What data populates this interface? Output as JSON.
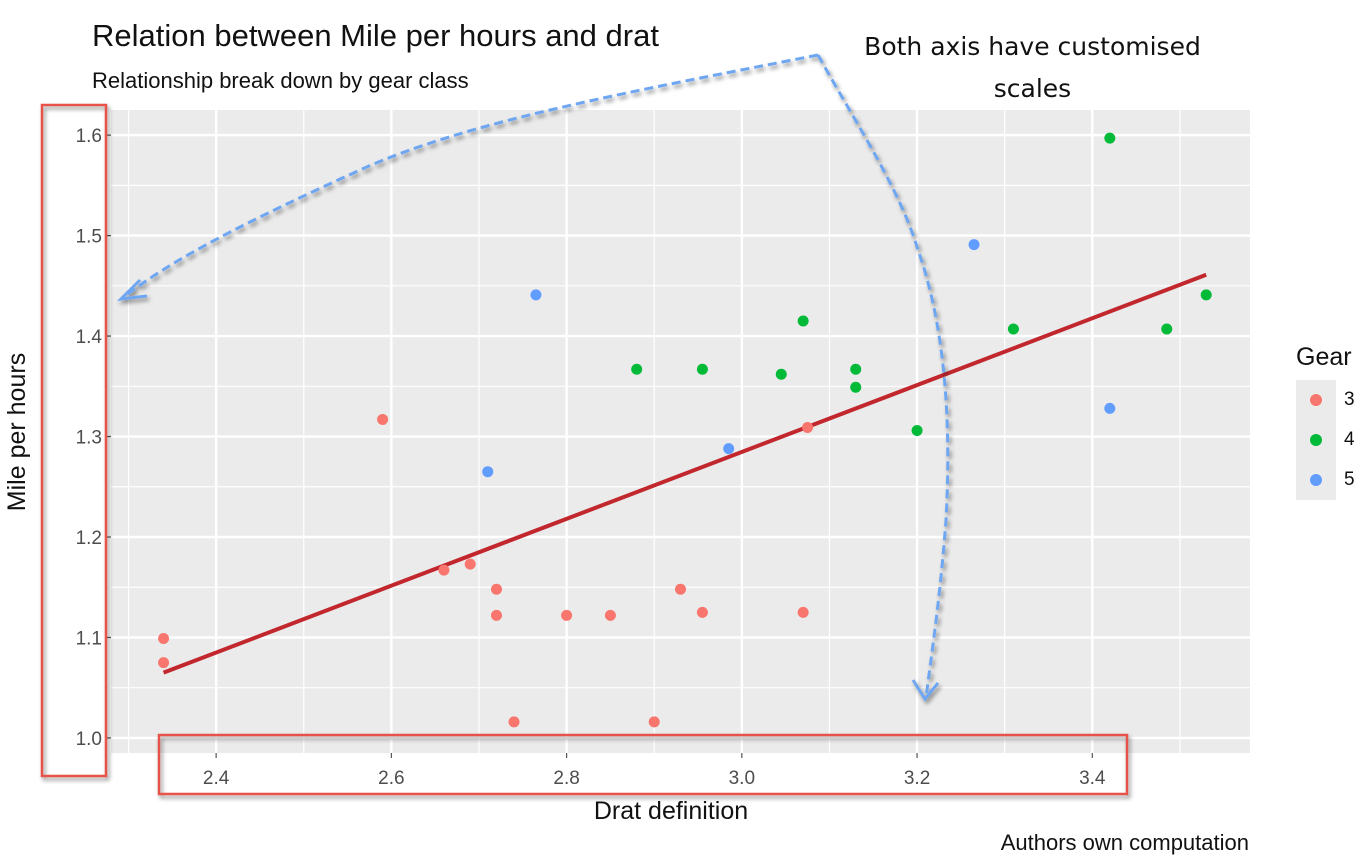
{
  "title": "Relation between Mile per hours and drat",
  "subtitle": "Relationship break down by gear class",
  "annotation": "Both axis have customised scales",
  "caption": "Authors own computation",
  "colors": {
    "panel": "#ebebeb",
    "grid": "#ffffff",
    "trend": "#c1272d",
    "highlight_box": "#e8534a",
    "arrow": "#6ea6f2"
  },
  "chart_data": {
    "type": "scatter",
    "title": "Relation between Mile per hours and drat",
    "subtitle": "Relationship break down by gear class",
    "xlabel": "Drat definition",
    "ylabel": "Mile per hours",
    "xlim": [
      2.28,
      3.58
    ],
    "ylim": [
      0.985,
      1.625
    ],
    "x_ticks": [
      "2.4",
      "2.6",
      "2.8",
      "3.0",
      "3.2",
      "3.4"
    ],
    "y_ticks": [
      "1.0",
      "1.1",
      "1.2",
      "1.3",
      "1.4",
      "1.5",
      "1.6"
    ],
    "grid": true,
    "legend": {
      "title": "Gear",
      "position": "right",
      "entries": [
        {
          "label": "3",
          "color": "#f8766d"
        },
        {
          "label": "4",
          "color": "#00ba38"
        },
        {
          "label": "5",
          "color": "#619cff"
        }
      ]
    },
    "series": [
      {
        "name": "3",
        "color": "#f8766d",
        "points": [
          [
            2.34,
            1.075
          ],
          [
            2.34,
            1.099
          ],
          [
            2.59,
            1.317
          ],
          [
            2.66,
            1.167
          ],
          [
            2.69,
            1.173
          ],
          [
            2.72,
            1.148
          ],
          [
            2.72,
            1.122
          ],
          [
            2.74,
            1.016
          ],
          [
            2.8,
            1.122
          ],
          [
            2.85,
            1.122
          ],
          [
            2.9,
            1.016
          ],
          [
            2.93,
            1.148
          ],
          [
            2.955,
            1.125
          ],
          [
            3.07,
            1.125
          ],
          [
            3.075,
            1.309
          ]
        ]
      },
      {
        "name": "4",
        "color": "#00ba38",
        "points": [
          [
            2.88,
            1.367
          ],
          [
            2.955,
            1.367
          ],
          [
            3.045,
            1.362
          ],
          [
            3.07,
            1.415
          ],
          [
            3.13,
            1.349
          ],
          [
            3.13,
            1.367
          ],
          [
            3.2,
            1.306
          ],
          [
            3.31,
            1.407
          ],
          [
            3.42,
            1.597
          ],
          [
            3.485,
            1.407
          ],
          [
            3.53,
            1.441
          ]
        ]
      },
      {
        "name": "5",
        "color": "#619cff",
        "points": [
          [
            2.71,
            1.265
          ],
          [
            2.765,
            1.441
          ],
          [
            2.985,
            1.288
          ],
          [
            3.265,
            1.491
          ],
          [
            3.42,
            1.328
          ]
        ]
      }
    ],
    "trend_line": {
      "x": [
        2.34,
        3.53
      ],
      "y": [
        1.065,
        1.461
      ]
    }
  }
}
